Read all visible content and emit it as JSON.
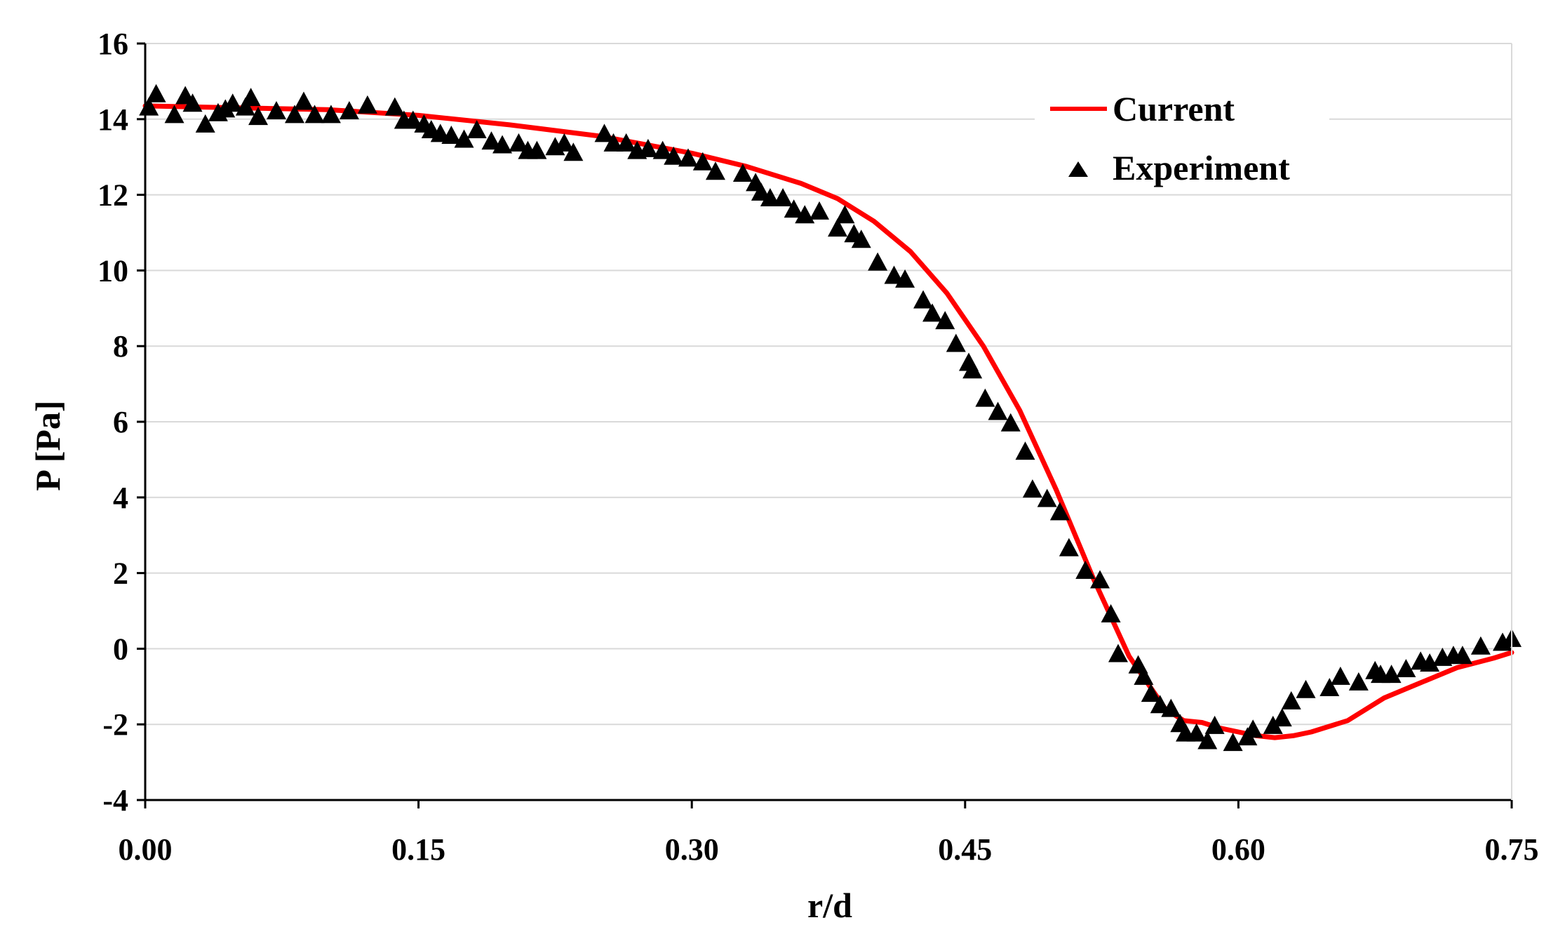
{
  "colors": {
    "current": "#ff0000",
    "experiment": "#000000",
    "grid": "#d9d9d9",
    "axis": "#000000"
  },
  "chart_data": {
    "type": "line",
    "title": "",
    "xlabel": "r/d",
    "ylabel": "P [Pa]",
    "xlim": [
      0,
      0.75
    ],
    "ylim": [
      -4,
      16
    ],
    "x_ticks": [
      0,
      0.15,
      0.3,
      0.45,
      0.6,
      0.75
    ],
    "x_tick_labels": [
      "0.00",
      "0.15",
      "0.30",
      "0.45",
      "0.60",
      "0.75"
    ],
    "y_ticks": [
      -4,
      -2,
      0,
      2,
      4,
      6,
      8,
      10,
      12,
      14,
      16
    ],
    "y_tick_labels": [
      "-4",
      "-2",
      "0",
      "2",
      "4",
      "6",
      "8",
      "10",
      "12",
      "14",
      "16"
    ],
    "grid": "horizontal",
    "legend_position": "top-right",
    "series": [
      {
        "name": "Current",
        "style": "line",
        "x": [
          0.0,
          0.05,
          0.1,
          0.15,
          0.2,
          0.25,
          0.3,
          0.33,
          0.36,
          0.38,
          0.4,
          0.42,
          0.44,
          0.46,
          0.48,
          0.5,
          0.52,
          0.54,
          0.56,
          0.57,
          0.58,
          0.59,
          0.6,
          0.61,
          0.62,
          0.63,
          0.64,
          0.66,
          0.68,
          0.7,
          0.72,
          0.74,
          0.75
        ],
        "y": [
          14.35,
          14.3,
          14.25,
          14.1,
          13.85,
          13.55,
          13.1,
          12.75,
          12.3,
          11.9,
          11.3,
          10.5,
          9.4,
          8.0,
          6.3,
          4.2,
          1.9,
          -0.2,
          -1.6,
          -1.9,
          -1.95,
          -2.1,
          -2.2,
          -2.3,
          -2.35,
          -2.3,
          -2.2,
          -1.9,
          -1.3,
          -0.9,
          -0.5,
          -0.25,
          -0.1
        ]
      },
      {
        "name": "Experiment",
        "style": "marker",
        "marker": "triangle",
        "x": [
          0.002,
          0.006,
          0.016,
          0.022,
          0.026,
          0.033,
          0.04,
          0.044,
          0.048,
          0.055,
          0.058,
          0.062,
          0.072,
          0.082,
          0.087,
          0.093,
          0.102,
          0.112,
          0.122,
          0.137,
          0.142,
          0.147,
          0.153,
          0.157,
          0.162,
          0.168,
          0.175,
          0.182,
          0.19,
          0.196,
          0.205,
          0.21,
          0.215,
          0.225,
          0.23,
          0.235,
          0.252,
          0.257,
          0.264,
          0.27,
          0.276,
          0.284,
          0.29,
          0.298,
          0.306,
          0.313,
          0.328,
          0.335,
          0.338,
          0.343,
          0.35,
          0.356,
          0.362,
          0.37,
          0.38,
          0.384,
          0.389,
          0.393,
          0.402,
          0.411,
          0.417,
          0.427,
          0.432,
          0.439,
          0.445,
          0.452,
          0.454,
          0.461,
          0.468,
          0.475,
          0.483,
          0.487,
          0.495,
          0.502,
          0.507,
          0.516,
          0.524,
          0.53,
          0.534,
          0.545,
          0.548,
          0.552,
          0.557,
          0.563,
          0.568,
          0.571,
          0.577,
          0.583,
          0.587,
          0.597,
          0.605,
          0.608,
          0.619,
          0.624,
          0.629,
          0.637,
          0.65,
          0.656,
          0.666,
          0.675,
          0.678,
          0.684,
          0.692,
          0.7,
          0.705,
          0.712,
          0.718,
          0.723,
          0.733,
          0.745,
          0.75
        ],
        "y": [
          14.3,
          14.65,
          14.1,
          14.6,
          14.4,
          13.85,
          14.15,
          14.25,
          14.4,
          14.3,
          14.55,
          14.05,
          14.2,
          14.1,
          14.45,
          14.1,
          14.1,
          14.2,
          14.35,
          14.3,
          13.95,
          13.95,
          13.85,
          13.7,
          13.6,
          13.55,
          13.45,
          13.7,
          13.4,
          13.3,
          13.35,
          13.15,
          13.15,
          13.25,
          13.35,
          13.1,
          13.6,
          13.35,
          13.35,
          13.15,
          13.2,
          13.15,
          13.0,
          12.95,
          12.85,
          12.6,
          12.55,
          12.3,
          12.05,
          11.9,
          11.9,
          11.6,
          11.45,
          11.55,
          11.1,
          11.45,
          10.95,
          10.8,
          10.2,
          9.85,
          9.75,
          9.2,
          8.85,
          8.65,
          8.05,
          7.55,
          7.35,
          6.6,
          6.25,
          5.95,
          5.2,
          4.2,
          3.95,
          3.6,
          2.65,
          2.05,
          1.8,
          0.9,
          -0.15,
          -0.45,
          -0.75,
          -1.2,
          -1.5,
          -1.6,
          -2.0,
          -2.25,
          -2.25,
          -2.45,
          -2.05,
          -2.5,
          -2.35,
          -2.15,
          -2.05,
          -1.85,
          -1.4,
          -1.1,
          -1.05,
          -0.75,
          -0.9,
          -0.6,
          -0.7,
          -0.7,
          -0.55,
          -0.35,
          -0.4,
          -0.25,
          -0.2,
          -0.2,
          0.05,
          0.15,
          0.25
        ]
      }
    ]
  }
}
